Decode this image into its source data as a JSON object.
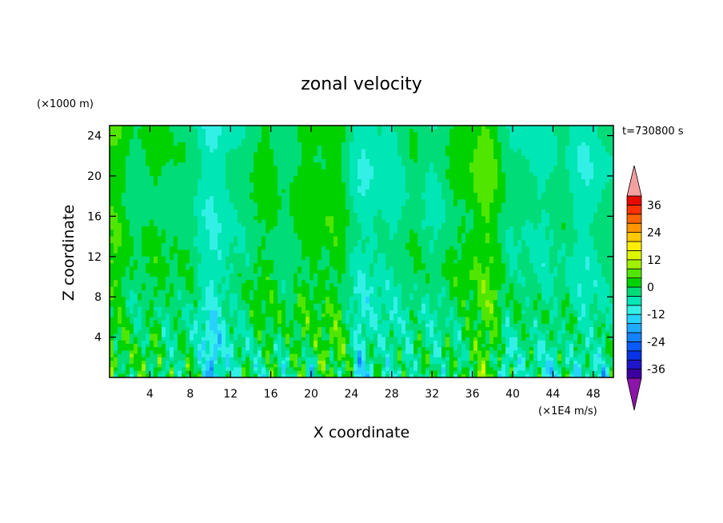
{
  "chart_data": {
    "type": "heatmap",
    "title": "zonal velocity",
    "xlabel": "X coordinate",
    "ylabel": "Z coordinate",
    "x_units": "(×1E4 m/s)",
    "y_units": "(×1000 m)",
    "time_label": "t=730800 s",
    "xlim": [
      0,
      50
    ],
    "ylim": [
      0,
      25
    ],
    "x_ticks": [
      4,
      8,
      12,
      16,
      20,
      24,
      28,
      32,
      36,
      40,
      44,
      48
    ],
    "y_ticks": [
      4,
      8,
      12,
      16,
      20,
      24
    ],
    "colorbar": {
      "levels": [
        -40,
        -36,
        -32,
        -28,
        -24,
        -20,
        -16,
        -12,
        -8,
        -4,
        0,
        4,
        8,
        12,
        16,
        20,
        24,
        28,
        32,
        36,
        40
      ],
      "tick_labels": [
        36,
        24,
        12,
        0,
        -12,
        -24,
        -36
      ],
      "colors": [
        "#3c00a0",
        "#1e14c8",
        "#0a32e6",
        "#0a5aff",
        "#1482ff",
        "#1eaaff",
        "#28d2ff",
        "#32f0e6",
        "#00e6b4",
        "#00dc78",
        "#00d200",
        "#50e600",
        "#a0f000",
        "#dcf500",
        "#fff000",
        "#ffc800",
        "#ff9600",
        "#ff6400",
        "#ff3200",
        "#e60a00"
      ],
      "under_color": "#8c14a8",
      "over_color": "#f5a0a0"
    }
  }
}
